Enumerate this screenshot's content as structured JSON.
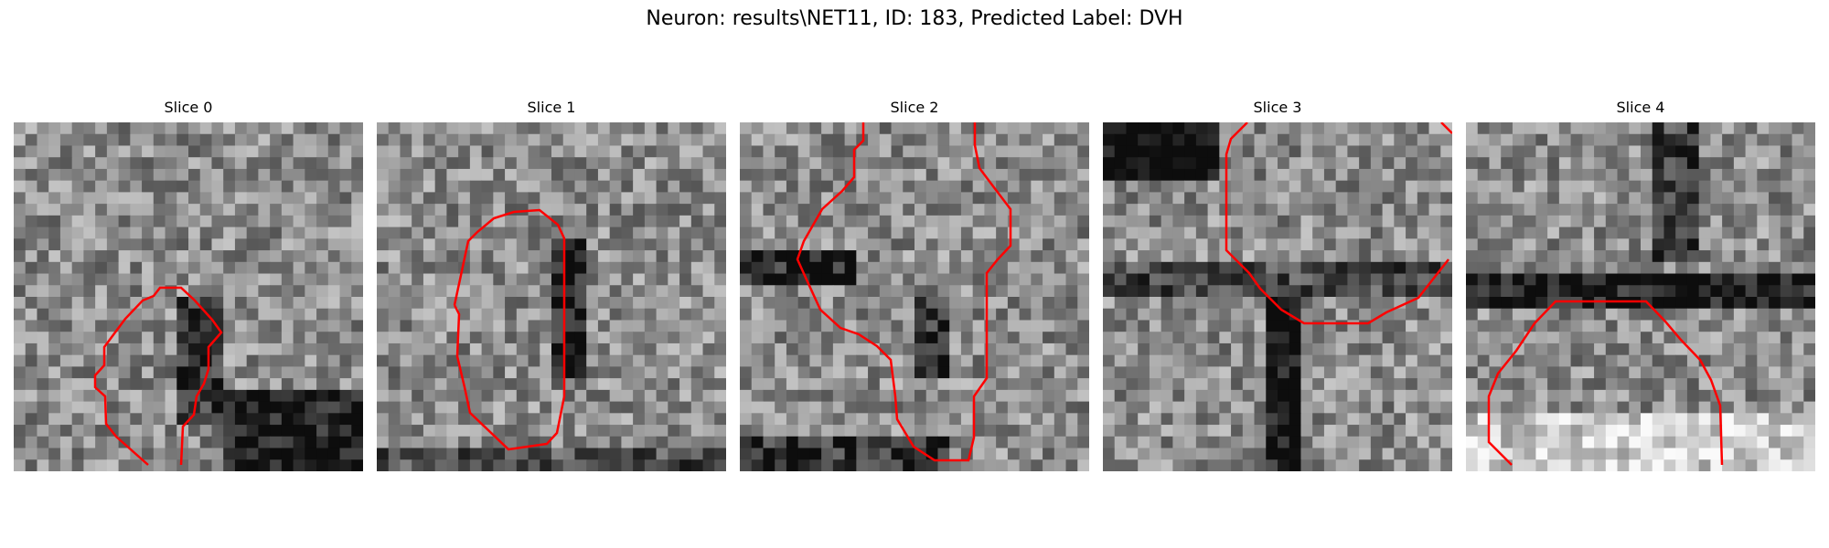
{
  "figure": {
    "title": "Neuron: results\\NET11, ID: 183, Predicted Label: DVH"
  },
  "panels": [
    {
      "title": "Slice 0",
      "contour_color": "#ff0000"
    },
    {
      "title": "Slice 1",
      "contour_color": "#ff0000"
    },
    {
      "title": "Slice 2",
      "contour_color": "#ff0000"
    },
    {
      "title": "Slice 3",
      "contour_color": "#ff0000"
    },
    {
      "title": "Slice 4",
      "contour_color": "#ff0000"
    }
  ],
  "image_style": {
    "colormap": "grayscale",
    "grid_size": 30
  }
}
